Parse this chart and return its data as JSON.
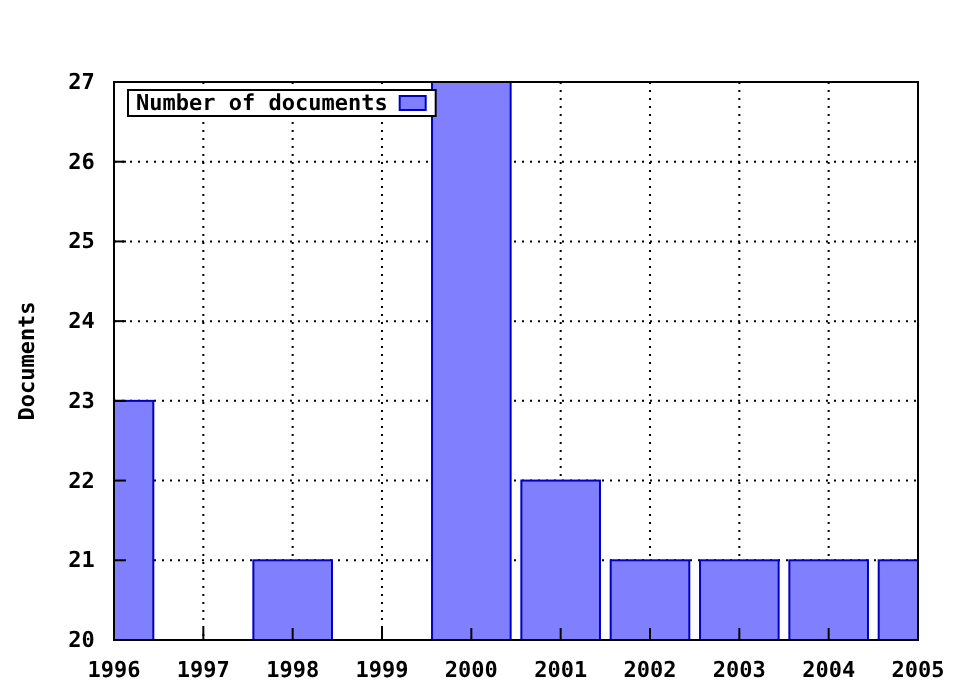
{
  "chart_data": {
    "type": "bar",
    "ylabel": "Documents",
    "x": [
      1996,
      1997,
      1998,
      1999,
      2000,
      2001,
      2002,
      2003,
      2004,
      2005
    ],
    "series": [
      {
        "name": "Number of documents",
        "color": "#8080ff",
        "values": [
          23,
          null,
          21,
          null,
          27,
          22,
          21,
          21,
          21,
          21
        ]
      }
    ],
    "xlim": [
      1996,
      2005
    ],
    "xticks": [
      1996,
      1997,
      1998,
      1999,
      2000,
      2001,
      2002,
      2003,
      2004,
      2005
    ],
    "ylim": [
      20,
      27
    ],
    "yticks": [
      20,
      21,
      22,
      23,
      24,
      25,
      26,
      27
    ],
    "grid": true,
    "legend": "top left"
  }
}
